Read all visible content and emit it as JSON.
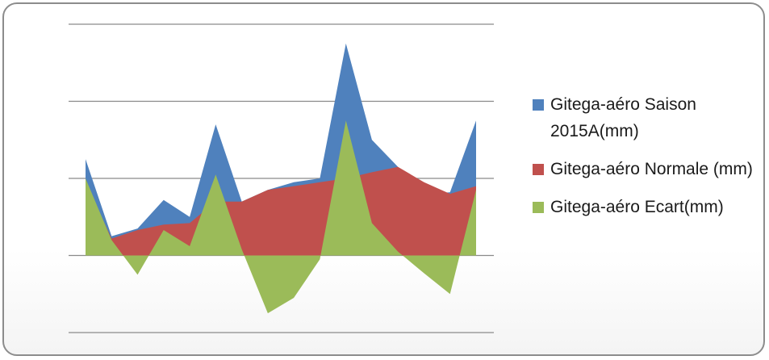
{
  "chart_data": {
    "type": "area",
    "ylim": [
      -1,
      3
    ],
    "grid": true,
    "legend_position": "right",
    "series": [
      {
        "name": "Gitega-aéro Saison 2015A(mm)",
        "color": "#4f81bd",
        "values": [
          1.25,
          0.25,
          0.35,
          0.72,
          0.5,
          1.7,
          0.7,
          0.85,
          0.95,
          1.0,
          2.75,
          1.5,
          1.15,
          0.8,
          0.82,
          1.75
        ]
      },
      {
        "name": "Gitega-aéro Normale (mm)",
        "color": "#c0504d",
        "values": [
          0.95,
          0.22,
          0.33,
          0.4,
          0.42,
          0.7,
          0.7,
          0.85,
          0.9,
          0.95,
          1.0,
          1.08,
          1.15,
          0.95,
          0.8,
          0.9
        ]
      },
      {
        "name": "Gitega-aéro Ecart(mm)",
        "color": "#9bbb59",
        "values": [
          1.0,
          0.2,
          -0.25,
          0.33,
          0.12,
          1.05,
          0.08,
          -0.75,
          -0.55,
          -0.05,
          1.75,
          0.42,
          0.05,
          -0.23,
          -0.5,
          0.85
        ]
      }
    ]
  }
}
